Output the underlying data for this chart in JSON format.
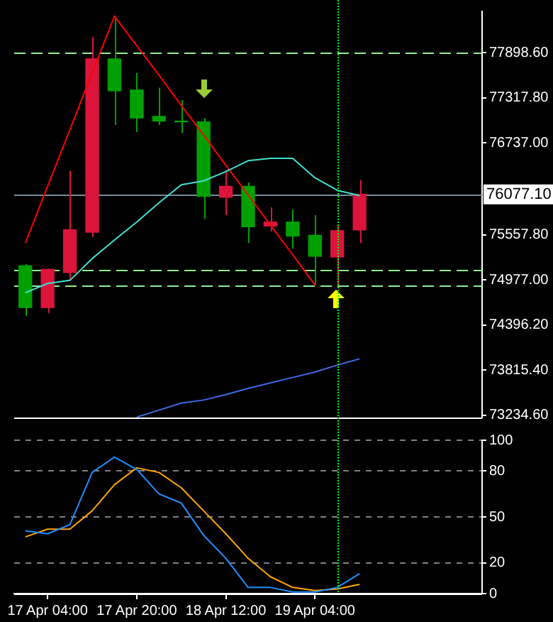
{
  "chart_data": [
    {
      "type": "candlestick",
      "categories": [
        null,
        null,
        null,
        null,
        null,
        null,
        null,
        null,
        null,
        null,
        null,
        null,
        null,
        null,
        null,
        null,
        null,
        null,
        null,
        null,
        null
      ],
      "ohlc": [
        [
          75160,
          75180,
          74510,
          74620
        ],
        [
          74620,
          75120,
          74550,
          75110
        ],
        [
          75070,
          76380,
          74980,
          75620
        ],
        [
          75590,
          78100,
          75530,
          77820
        ],
        [
          77820,
          78370,
          76970,
          77410
        ],
        [
          77420,
          77640,
          76880,
          77060
        ],
        [
          77080,
          77450,
          76970,
          77020
        ],
        [
          77020,
          77290,
          76870,
          77010
        ],
        [
          77010,
          77060,
          75760,
          76050
        ],
        [
          76040,
          76390,
          75810,
          76180
        ],
        [
          76180,
          76230,
          75450,
          75660
        ],
        [
          75670,
          75910,
          75600,
          75720
        ],
        [
          75720,
          75880,
          75380,
          75540
        ],
        [
          75550,
          75810,
          74910,
          75280
        ],
        [
          75270,
          75670,
          74900,
          75610
        ],
        [
          75620,
          76260,
          75450,
          76077.1
        ],
        null,
        null,
        null,
        null,
        null
      ],
      "colors": [
        "#00a000",
        "#dc143c",
        "#dc143c",
        "#dc143c",
        "#00a000",
        "#00a000",
        "#00a000",
        "#00a000",
        "#00a000",
        "#dc143c",
        "#00a000",
        "#dc143c",
        "#00a000",
        "#00a000",
        "#dc143c",
        "#dc143c",
        null,
        null,
        null,
        null,
        null
      ],
      "series": [
        {
          "type": "line",
          "color": "#40e0d0",
          "values": [
            74810,
            74930,
            74970,
            75250,
            75490,
            75720,
            75970,
            76200,
            76250,
            76370,
            76510,
            76540,
            76540,
            76290,
            76130,
            76060,
            null,
            null,
            null,
            null,
            null
          ]
        },
        {
          "type": "line",
          "color": "#4169e1",
          "values": [
            null,
            null,
            null,
            null,
            null,
            73210,
            73300,
            73390,
            73430,
            73500,
            73580,
            73650,
            73720,
            73790,
            73880,
            73960,
            null,
            null,
            null,
            null,
            null
          ]
        },
        {
          "type": "line",
          "color": "#ff0000",
          "values": [
            75450,
            76180,
            76910,
            77640,
            78370,
            77990,
            77610,
            77220,
            76840,
            76450,
            76070,
            75680,
            75300,
            74910,
            null,
            null,
            null,
            null,
            null,
            null,
            null
          ]
        }
      ],
      "ylim": [
        73205,
        78432
      ],
      "yticks": [
        {
          "value": 73234.6,
          "label": "73234.60"
        },
        {
          "value": 73815.4,
          "label": "73815.40"
        },
        {
          "value": 74396.2,
          "label": "74396.20"
        },
        {
          "value": 74977,
          "label": "74977.00"
        },
        {
          "value": 75557.8,
          "label": "75557.80"
        },
        {
          "value": 76737,
          "label": "76737.00"
        },
        {
          "value": 77317.8,
          "label": "77317.80"
        },
        {
          "value": 77898.6,
          "label": "77898.60"
        }
      ],
      "tick_labels": "y",
      "grid": false,
      "legend": false,
      "marker": "none",
      "ref_lines": [
        {
          "axis": "y",
          "value": 77898.6,
          "color": "#90ee90",
          "line_style": "dashed"
        },
        {
          "axis": "y",
          "value": 75100,
          "color": "#90ee90",
          "line_style": "dashed"
        },
        {
          "axis": "y",
          "value": 74910,
          "color": "#90ee90",
          "line_style": "dashed"
        },
        {
          "axis": "y",
          "value": 76077.1,
          "label": "76077.10",
          "color": "#778899",
          "line_style": "solid"
        }
      ]
    },
    {
      "type": "line",
      "categories": [
        null,
        "17 Apr 04:00",
        null,
        null,
        null,
        "17 Apr 20:00",
        null,
        null,
        null,
        "18 Apr 12:00",
        null,
        null,
        null,
        "19 Apr 04:00",
        null,
        null,
        null,
        null,
        null,
        null,
        null
      ],
      "series": [
        {
          "color": "#1e90ff",
          "values": [
            41,
            39,
            45,
            79,
            89,
            81,
            65,
            59,
            38,
            23,
            4,
            4,
            1,
            1,
            4,
            13,
            null,
            null,
            null,
            null,
            null
          ]
        },
        {
          "color": "#ffa500",
          "values": [
            37,
            42,
            42,
            54,
            71,
            82,
            79,
            69,
            54,
            39,
            23,
            11,
            4,
            2,
            3,
            6,
            null,
            null,
            null,
            null,
            null
          ]
        }
      ],
      "ylim": [
        0,
        100
      ],
      "yticks": [
        0,
        20,
        50,
        80,
        100
      ],
      "grid": "y",
      "legend": false,
      "marker": "none"
    }
  ]
}
